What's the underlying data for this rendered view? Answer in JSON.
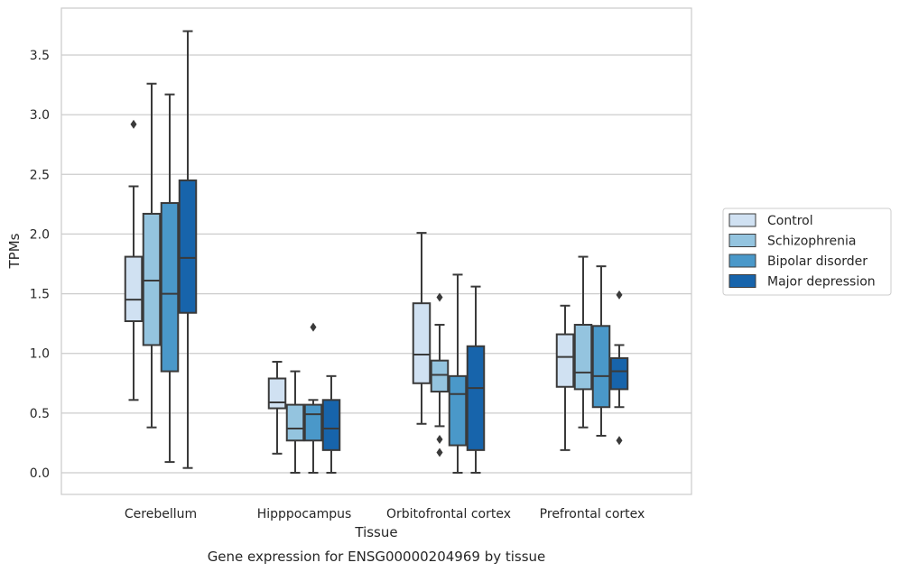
{
  "caption": "Gene expression for ENSG00000204969 by tissue",
  "colors": {
    "Control": "#d0e1f2",
    "Schizophrenia": "#94c4df",
    "Bipolar disorder": "#4a98c9",
    "Major depression": "#1764ab",
    "grid": "#cccccc",
    "box_edge": "#3a3a3a"
  },
  "chart_data": {
    "type": "box",
    "title": "",
    "xlabel": "Tissue",
    "ylabel": "TPMs",
    "ylim": [
      -0.18,
      3.9
    ],
    "yticks": [
      0.0,
      0.5,
      1.0,
      1.5,
      2.0,
      2.5,
      3.0,
      3.5
    ],
    "ytick_labels": [
      "0.0",
      "0.5",
      "1.0",
      "1.5",
      "2.0",
      "2.5",
      "3.0",
      "3.5"
    ],
    "grid": "horizontal",
    "legend_position": "right, outside",
    "categories": [
      "Cerebellum",
      "Hipppocampus",
      "Orbitofrontal cortex",
      "Prefrontal cortex"
    ],
    "series": [
      {
        "name": "Control",
        "boxes": [
          {
            "whislo": 0.61,
            "q1": 1.27,
            "med": 1.45,
            "q3": 1.81,
            "whishi": 2.4,
            "fliers": [
              2.92
            ]
          },
          {
            "whislo": 0.16,
            "q1": 0.54,
            "med": 0.59,
            "q3": 0.79,
            "whishi": 0.93,
            "fliers": []
          },
          {
            "whislo": 0.41,
            "q1": 0.75,
            "med": 0.99,
            "q3": 1.42,
            "whishi": 2.01,
            "fliers": []
          },
          {
            "whislo": 0.19,
            "q1": 0.72,
            "med": 0.97,
            "q3": 1.16,
            "whishi": 1.4,
            "fliers": []
          }
        ]
      },
      {
        "name": "Schizophrenia",
        "boxes": [
          {
            "whislo": 0.38,
            "q1": 1.07,
            "med": 1.61,
            "q3": 2.17,
            "whishi": 3.26,
            "fliers": []
          },
          {
            "whislo": 0.0,
            "q1": 0.27,
            "med": 0.37,
            "q3": 0.57,
            "whishi": 0.85,
            "fliers": []
          },
          {
            "whislo": 0.39,
            "q1": 0.68,
            "med": 0.82,
            "q3": 0.94,
            "whishi": 1.24,
            "fliers": [
              1.47,
              0.28,
              0.17
            ]
          },
          {
            "whislo": 0.38,
            "q1": 0.7,
            "med": 0.84,
            "q3": 1.24,
            "whishi": 1.81,
            "fliers": []
          }
        ]
      },
      {
        "name": "Bipolar disorder",
        "boxes": [
          {
            "whislo": 0.09,
            "q1": 0.85,
            "med": 1.5,
            "q3": 2.26,
            "whishi": 3.17,
            "fliers": []
          },
          {
            "whislo": 0.0,
            "q1": 0.27,
            "med": 0.49,
            "q3": 0.57,
            "whishi": 0.61,
            "fliers": [
              1.22
            ]
          },
          {
            "whislo": 0.0,
            "q1": 0.23,
            "med": 0.66,
            "q3": 0.81,
            "whishi": 1.66,
            "fliers": []
          },
          {
            "whislo": 0.31,
            "q1": 0.55,
            "med": 0.81,
            "q3": 1.23,
            "whishi": 1.73,
            "fliers": []
          }
        ]
      },
      {
        "name": "Major depression",
        "boxes": [
          {
            "whislo": 0.04,
            "q1": 1.34,
            "med": 1.8,
            "q3": 2.45,
            "whishi": 3.7,
            "fliers": []
          },
          {
            "whislo": 0.0,
            "q1": 0.19,
            "med": 0.37,
            "q3": 0.61,
            "whishi": 0.81,
            "fliers": []
          },
          {
            "whislo": 0.0,
            "q1": 0.19,
            "med": 0.71,
            "q3": 1.06,
            "whishi": 1.56,
            "fliers": []
          },
          {
            "whislo": 0.55,
            "q1": 0.7,
            "med": 0.85,
            "q3": 0.96,
            "whishi": 1.07,
            "fliers": [
              1.49,
              0.27
            ]
          }
        ]
      }
    ]
  }
}
